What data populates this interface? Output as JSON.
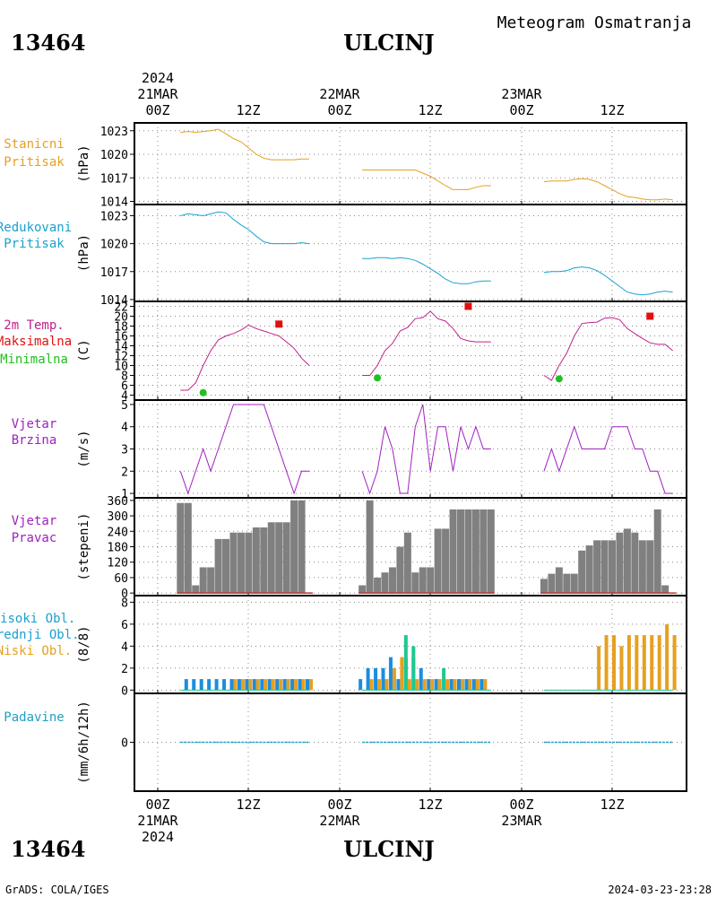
{
  "header": {
    "station_id": "13464",
    "station_name": "ULCINJ",
    "chart_title": "Meteogram Osmatranja",
    "footer_left": "GrADS: COLA/IGES",
    "footer_right": "2024-03-23-23:28"
  },
  "time_axis": {
    "year": "2024",
    "day_labels": [
      "21MAR",
      "22MAR",
      "23MAR"
    ],
    "tick_labels": [
      "00Z",
      "12Z",
      "00Z",
      "12Z",
      "00Z",
      "12Z"
    ]
  },
  "colors": {
    "station_pressure": "#e6a020",
    "reduced_pressure": "#1aa0d0",
    "temperature": "#c0208c",
    "t_max": "#e01010",
    "t_min": "#20c020",
    "wind_speed": "#a020c0",
    "wind_dir": "#808080",
    "high_cloud": "#1a8ee0",
    "mid_cloud": "#20c890",
    "low_cloud": "#e6a020",
    "precip": "#20a0c0"
  },
  "chart_data": [
    {
      "id": "station_pressure",
      "type": "line",
      "label_lines": [
        "Stanicni",
        "Pritisak"
      ],
      "ylabel": "(hPa)",
      "ylim": [
        1013.6,
        1024
      ],
      "yticks": [
        1014,
        1017,
        1020,
        1023
      ],
      "grid": true,
      "segments": [
        {
          "x": [
            3,
            4,
            5,
            6,
            7,
            8,
            9,
            10,
            11,
            12,
            13,
            14,
            15,
            16,
            17,
            18,
            19,
            20
          ],
          "values": [
            1022.8,
            1022.9,
            1022.8,
            1022.9,
            1023,
            1023.2,
            1022.6,
            1022.0,
            1021.6,
            1020.8,
            1020.0,
            1019.5,
            1019.3,
            1019.3,
            1019.3,
            1019.3,
            1019.4,
            1019.4
          ]
        },
        {
          "x": [
            27,
            28,
            29,
            30,
            31,
            32,
            33,
            34,
            35,
            36,
            37,
            38,
            39,
            40,
            41,
            42,
            43,
            44
          ],
          "values": [
            1018.0,
            1018.0,
            1018.0,
            1018.0,
            1018.0,
            1018.0,
            1018.0,
            1018.0,
            1017.6,
            1017.2,
            1016.6,
            1016.0,
            1015.5,
            1015.5,
            1015.5,
            1015.8,
            1016.0,
            1016.0
          ]
        },
        {
          "x": [
            51,
            52,
            53,
            54,
            55,
            56,
            57,
            58,
            59,
            60,
            61,
            62,
            63,
            64,
            65,
            66,
            67,
            68
          ],
          "values": [
            1016.5,
            1016.6,
            1016.6,
            1016.6,
            1016.8,
            1016.9,
            1016.8,
            1016.5,
            1016.0,
            1015.5,
            1015.0,
            1014.6,
            1014.5,
            1014.3,
            1014.2,
            1014.2,
            1014.3,
            1014.2
          ]
        }
      ]
    },
    {
      "id": "reduced_pressure",
      "type": "line",
      "label_lines": [
        "Redukovani",
        "Pritisak"
      ],
      "ylabel": "(hPa)",
      "ylim": [
        1013.8,
        1024.2
      ],
      "yticks": [
        1014,
        1017,
        1020,
        1023
      ],
      "grid": true,
      "segments": [
        {
          "x": [
            3,
            4,
            5,
            6,
            7,
            8,
            9,
            10,
            11,
            12,
            13,
            14,
            15,
            16,
            17,
            18,
            19,
            20
          ],
          "values": [
            1023.0,
            1023.2,
            1023.1,
            1023.0,
            1023.2,
            1023.4,
            1023.3,
            1022.6,
            1022.0,
            1021.5,
            1020.8,
            1020.2,
            1020.0,
            1020.0,
            1020.0,
            1020.0,
            1020.1,
            1020.0
          ]
        },
        {
          "x": [
            27,
            28,
            29,
            30,
            31,
            32,
            33,
            34,
            35,
            36,
            37,
            38,
            39,
            40,
            41,
            42,
            43,
            44
          ],
          "values": [
            1018.4,
            1018.4,
            1018.5,
            1018.5,
            1018.4,
            1018.5,
            1018.4,
            1018.2,
            1017.8,
            1017.3,
            1016.8,
            1016.2,
            1015.8,
            1015.7,
            1015.7,
            1015.9,
            1016.0,
            1016.0
          ]
        },
        {
          "x": [
            51,
            52,
            53,
            54,
            55,
            56,
            57,
            58,
            59,
            60,
            61,
            62,
            63,
            64,
            65,
            66,
            67,
            68
          ],
          "values": [
            1016.9,
            1017.0,
            1017.0,
            1017.1,
            1017.4,
            1017.5,
            1017.4,
            1017.1,
            1016.6,
            1016.0,
            1015.4,
            1014.8,
            1014.6,
            1014.5,
            1014.6,
            1014.8,
            1014.9,
            1014.8
          ]
        }
      ]
    },
    {
      "id": "temperature",
      "type": "line",
      "label_lines": [
        "2m Temp.",
        "Maksimalna",
        "Minimalna"
      ],
      "ylabel": "(C)",
      "ylim": [
        3,
        23
      ],
      "yticks": [
        4,
        6,
        8,
        10,
        12,
        14,
        16,
        18,
        20,
        22
      ],
      "grid": true,
      "segments": [
        {
          "x": [
            3,
            4,
            5,
            6,
            7,
            8,
            9,
            10,
            11,
            12,
            13,
            14,
            15,
            16,
            17,
            18,
            19,
            20
          ],
          "values": [
            5,
            5,
            6.5,
            10,
            13,
            15.2,
            16,
            16.5,
            17.2,
            18.2,
            17.5,
            17,
            16.5,
            16,
            14.8,
            13.5,
            11.5,
            10
          ]
        },
        {
          "x": [
            27,
            28,
            29,
            30,
            31,
            32,
            33,
            34,
            35,
            36,
            37,
            38,
            39,
            40,
            41,
            42,
            43,
            44
          ],
          "values": [
            8,
            8,
            10,
            13,
            14.5,
            17,
            17.7,
            19.5,
            19.7,
            21,
            19.5,
            19,
            17.5,
            15.5,
            15,
            14.8,
            14.8,
            14.8
          ]
        },
        {
          "x": [
            51,
            52,
            53,
            54,
            55,
            56,
            57,
            58,
            59,
            60,
            61,
            62,
            63,
            64,
            65,
            66,
            67,
            68
          ],
          "values": [
            8,
            7,
            10,
            12.5,
            16,
            18.5,
            18.7,
            18.8,
            19.6,
            19.7,
            19.3,
            17.5,
            16.5,
            15.5,
            14.6,
            14.3,
            14.3,
            13
          ]
        }
      ],
      "max_points": [
        {
          "x": 16,
          "value": 18.4
        },
        {
          "x": 41,
          "value": 22
        },
        {
          "x": 65,
          "value": 20
        }
      ],
      "min_points": [
        {
          "x": 6,
          "value": 4.5
        },
        {
          "x": 29,
          "value": 7.5
        },
        {
          "x": 53,
          "value": 7.3
        }
      ]
    },
    {
      "id": "wind_speed",
      "type": "line",
      "label_lines": [
        "Vjetar",
        "Brzina"
      ],
      "ylabel": "(m/s)",
      "ylim": [
        0.8,
        5.2
      ],
      "yticks": [
        1,
        2,
        3,
        4,
        5
      ],
      "grid": true,
      "segments": [
        {
          "x": [
            3,
            4,
            5,
            6,
            7,
            8,
            9,
            10,
            11,
            12,
            13,
            14,
            15,
            16,
            17,
            18,
            19,
            20
          ],
          "values": [
            2,
            1,
            2,
            3,
            2,
            3,
            4,
            5,
            5,
            5,
            5,
            5,
            4,
            3,
            2,
            1,
            2,
            2
          ]
        },
        {
          "x": [
            27,
            28,
            29,
            30,
            31,
            32,
            33,
            34,
            35,
            36,
            37,
            38,
            39,
            40,
            41,
            42,
            43,
            44
          ],
          "values": [
            2,
            1,
            2,
            4,
            3,
            1,
            1,
            4,
            5,
            2,
            4,
            4,
            2,
            4,
            3,
            4,
            3,
            3
          ]
        },
        {
          "x": [
            51,
            52,
            53,
            54,
            55,
            56,
            57,
            58,
            59,
            60,
            61,
            62,
            63,
            64,
            65,
            66,
            67,
            68
          ],
          "values": [
            2,
            3,
            2,
            3,
            4,
            3,
            3,
            3,
            3,
            4,
            4,
            4,
            3,
            3,
            2,
            2,
            1,
            1
          ]
        }
      ]
    },
    {
      "id": "wind_direction",
      "type": "bar",
      "label_lines": [
        "Vjetar",
        "Pravac"
      ],
      "ylabel": "(stepeni)",
      "ylim": [
        -10,
        370
      ],
      "yticks": [
        0,
        60,
        120,
        180,
        240,
        300,
        360
      ],
      "grid": true,
      "segments": [
        {
          "x": [
            3,
            4,
            5,
            6,
            7,
            8,
            9,
            10,
            11,
            12,
            13,
            14,
            15,
            16,
            17,
            18,
            19,
            20
          ],
          "values": [
            350,
            350,
            30,
            100,
            100,
            210,
            210,
            235,
            235,
            235,
            255,
            255,
            275,
            275,
            275,
            360,
            360,
            null
          ]
        },
        {
          "x": [
            27,
            28,
            29,
            30,
            31,
            32,
            33,
            34,
            35,
            36,
            37,
            38,
            39,
            40,
            41,
            42,
            43,
            44
          ],
          "values": [
            30,
            360,
            60,
            80,
            100,
            180,
            235,
            80,
            100,
            100,
            250,
            250,
            325,
            325,
            325,
            325,
            325,
            325
          ]
        },
        {
          "x": [
            51,
            52,
            53,
            54,
            55,
            56,
            57,
            58,
            59,
            60,
            61,
            62,
            63,
            64,
            65,
            66,
            67,
            68
          ],
          "values": [
            55,
            75,
            100,
            75,
            75,
            165,
            185,
            205,
            205,
            205,
            235,
            250,
            235,
            205,
            205,
            325,
            30,
            null
          ]
        }
      ]
    },
    {
      "id": "clouds",
      "type": "bar",
      "label_lines": [
        "Visoki Obl.",
        "Srednji Obl.",
        "Niski Obl."
      ],
      "ylabel": "(8/8)",
      "ylim": [
        -0.3,
        8.6
      ],
      "yticks": [
        0,
        2,
        4,
        6,
        8
      ],
      "grid": true,
      "series": [
        {
          "name": "Visoki Obl.",
          "x": [
            4,
            5,
            6,
            7,
            8,
            9,
            10,
            11,
            12,
            13,
            14,
            15,
            16,
            17,
            18,
            19,
            20,
            27,
            28,
            29,
            30,
            31,
            32,
            33,
            34,
            35,
            36,
            37,
            38,
            39,
            40,
            41,
            42,
            43
          ],
          "values": [
            1,
            1,
            1,
            1,
            1,
            1,
            1,
            1,
            1,
            1,
            1,
            1,
            1,
            1,
            1,
            1,
            1,
            1,
            2,
            2,
            2,
            3,
            1,
            3,
            3,
            2,
            1,
            1,
            1,
            1,
            1,
            1,
            1,
            1
          ]
        },
        {
          "name": "Srednji Obl.",
          "x": [
            33,
            34,
            38
          ],
          "values": [
            5,
            4,
            2
          ]
        },
        {
          "name": "Niski Obl.",
          "x": [
            10,
            11,
            12,
            13,
            14,
            15,
            16,
            17,
            18,
            19,
            20,
            28,
            29,
            30,
            31,
            32,
            33,
            34,
            35,
            36,
            37,
            38,
            39,
            40,
            41,
            42,
            43,
            58,
            59,
            60,
            61,
            62,
            63,
            64,
            65,
            66,
            67,
            68
          ],
          "values": [
            1,
            1,
            1,
            1,
            1,
            1,
            1,
            1,
            1,
            1,
            1,
            1,
            1,
            1,
            2,
            3,
            1,
            1,
            1,
            1,
            1,
            1,
            1,
            1,
            1,
            1,
            1,
            4,
            5,
            5,
            4,
            5,
            5,
            5,
            5,
            5,
            6,
            5
          ]
        }
      ]
    },
    {
      "id": "precipitation",
      "type": "bar",
      "label_lines": [
        "Padavine"
      ],
      "ylabel": "(mm/6h/12h)",
      "ylim": [
        -1,
        1
      ],
      "yticks": [
        0
      ],
      "grid": true,
      "segments": [
        {
          "x": [
            3,
            4,
            5,
            6,
            7,
            8,
            9,
            10,
            11,
            12,
            13,
            14,
            15,
            16,
            17,
            18,
            19,
            20
          ],
          "values": [
            0,
            0,
            0,
            0,
            0,
            0,
            0,
            0,
            0,
            0,
            0,
            0,
            0,
            0,
            0,
            0,
            0,
            0
          ]
        },
        {
          "x": [
            27,
            28,
            29,
            30,
            31,
            32,
            33,
            34,
            35,
            36,
            37,
            38,
            39,
            40,
            41,
            42,
            43,
            44
          ],
          "values": [
            0,
            0,
            0,
            0,
            0,
            0,
            0,
            0,
            0,
            0,
            0,
            0,
            0,
            0,
            0,
            0,
            0,
            0
          ]
        },
        {
          "x": [
            51,
            52,
            53,
            54,
            55,
            56,
            57,
            58,
            59,
            60,
            61,
            62,
            63,
            64,
            65,
            66,
            67,
            68
          ],
          "values": [
            0,
            0,
            0,
            0,
            0,
            0,
            0,
            0,
            0,
            0,
            0,
            0,
            0,
            0,
            0,
            0,
            0,
            0
          ]
        }
      ]
    }
  ]
}
